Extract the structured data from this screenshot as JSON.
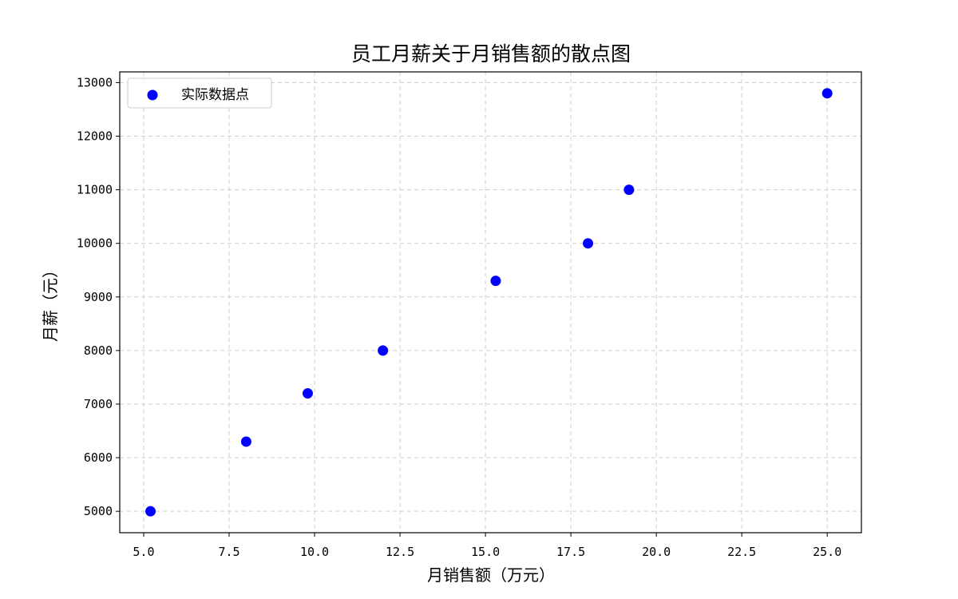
{
  "chart_data": {
    "type": "scatter",
    "title": "员工月薪关于月销售额的散点图",
    "xlabel": "月销售额（万元）",
    "ylabel": "月薪（元）",
    "xlim": [
      4.3,
      26.0
    ],
    "ylim": [
      4600,
      13200
    ],
    "x_ticks": [
      5.0,
      7.5,
      10.0,
      12.5,
      15.0,
      17.5,
      20.0,
      22.5,
      25.0
    ],
    "x_tick_labels": [
      "5.0",
      "7.5",
      "10.0",
      "12.5",
      "15.0",
      "17.5",
      "20.0",
      "22.5",
      "25.0"
    ],
    "y_ticks": [
      5000,
      6000,
      7000,
      8000,
      9000,
      10000,
      11000,
      12000,
      13000
    ],
    "y_tick_labels": [
      "5000",
      "6000",
      "7000",
      "8000",
      "9000",
      "10000",
      "11000",
      "12000",
      "13000"
    ],
    "grid": true,
    "legend_position": "top-left",
    "series": [
      {
        "name": "实际数据点",
        "color": "#0000ff",
        "x": [
          5.2,
          8.0,
          9.8,
          12.0,
          15.3,
          18.0,
          19.2,
          25.0
        ],
        "y": [
          5000,
          6300,
          7200,
          8000,
          9300,
          10000,
          11000,
          12800
        ]
      }
    ]
  }
}
